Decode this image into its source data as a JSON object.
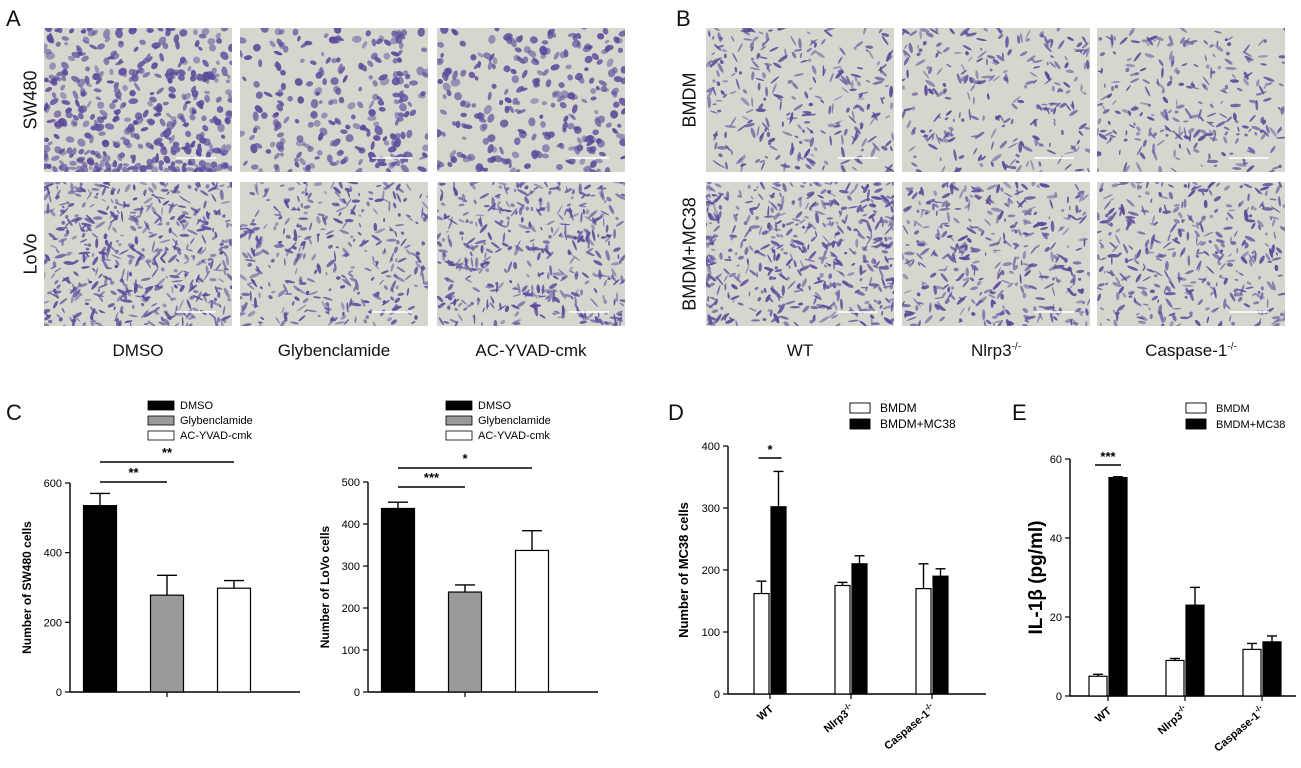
{
  "panels": {
    "A": {
      "letter": "A",
      "rows": [
        "SW480",
        "LoVo"
      ],
      "columns": [
        "DMSO",
        "Glybenclamide",
        "AC-YVAD-cmk"
      ]
    },
    "B": {
      "letter": "B",
      "rows": [
        "BMDM",
        "BMDM+MC38"
      ],
      "columns": [
        "WT",
        "Nlrp3",
        "Caspase-1"
      ],
      "column_superscript": "-/-"
    },
    "C": {
      "letter": "C"
    },
    "D": {
      "letter": "D"
    },
    "E": {
      "letter": "E"
    }
  },
  "colors": {
    "stain": "#5a4a9a",
    "background": "#d6d6cf",
    "black_bar": "#000000",
    "gray_bar": "#9a9a9a",
    "white_bar": "#ffffff"
  },
  "chart_data": [
    {
      "type": "bar",
      "panel": "C-left",
      "categories": [
        "DMSO",
        "Glybenclamide",
        "AC-YVAD-cmk"
      ],
      "values": [
        535,
        278,
        298
      ],
      "errors": [
        35,
        57,
        22
      ],
      "bar_colors": [
        "#000000",
        "#9a9a9a",
        "#ffffff"
      ],
      "ylabel": "Number of SW480 cells",
      "ylim": [
        0,
        600
      ],
      "yticks": [
        0,
        200,
        400,
        600
      ],
      "legend": [
        "DMSO",
        "Glybenclamide",
        "AC-YVAD-cmk"
      ],
      "significance": [
        {
          "from": 0,
          "to": 1,
          "label": "**"
        },
        {
          "from": 0,
          "to": 2,
          "label": "**"
        }
      ]
    },
    {
      "type": "bar",
      "panel": "C-right",
      "categories": [
        "DMSO",
        "Glybenclamide",
        "AC-YVAD-cmk"
      ],
      "values": [
        437,
        238,
        337
      ],
      "errors": [
        15,
        17,
        47
      ],
      "bar_colors": [
        "#000000",
        "#9a9a9a",
        "#ffffff"
      ],
      "ylabel": "Number of LoVo cells",
      "ylim": [
        0,
        500
      ],
      "yticks": [
        0,
        100,
        200,
        300,
        400,
        500
      ],
      "legend": [
        "DMSO",
        "Glybenclamide",
        "AC-YVAD-cmk"
      ],
      "significance": [
        {
          "from": 0,
          "to": 1,
          "label": "***"
        },
        {
          "from": 0,
          "to": 2,
          "label": "*"
        }
      ]
    },
    {
      "type": "bar",
      "panel": "D",
      "categories": [
        "WT",
        "Nlrp3",
        "Caspase-1"
      ],
      "category_superscript": "-/-",
      "series": [
        {
          "name": "BMDM",
          "values": [
            162,
            175,
            170
          ],
          "errors": [
            20,
            5,
            40
          ],
          "color": "#ffffff"
        },
        {
          "name": "BMDM+MC38",
          "values": [
            302,
            210,
            190
          ],
          "errors": [
            57,
            13,
            12
          ],
          "color": "#000000"
        }
      ],
      "ylabel": "Number of MC38 cells",
      "ylim": [
        0,
        400
      ],
      "yticks": [
        0,
        100,
        200,
        300,
        400
      ],
      "significance": [
        {
          "group": 0,
          "label": "*"
        }
      ]
    },
    {
      "type": "bar",
      "panel": "E",
      "categories": [
        "WT",
        "Nlrp3",
        "Caspase-1"
      ],
      "category_superscript": "-/-",
      "series": [
        {
          "name": "BMDM",
          "values": [
            5.0,
            9.0,
            11.8
          ],
          "errors": [
            0.5,
            0.5,
            1.5
          ],
          "color": "#ffffff"
        },
        {
          "name": "BMDM+MC38",
          "values": [
            55.3,
            23.0,
            13.7
          ],
          "errors": [
            0.2,
            4.5,
            1.5
          ],
          "color": "#000000"
        }
      ],
      "ylabel": "IL-1β (pg/ml)",
      "ylim": [
        0,
        60
      ],
      "yticks": [
        0,
        20,
        40,
        60
      ],
      "significance": [
        {
          "group": 0,
          "label": "***"
        }
      ]
    }
  ]
}
